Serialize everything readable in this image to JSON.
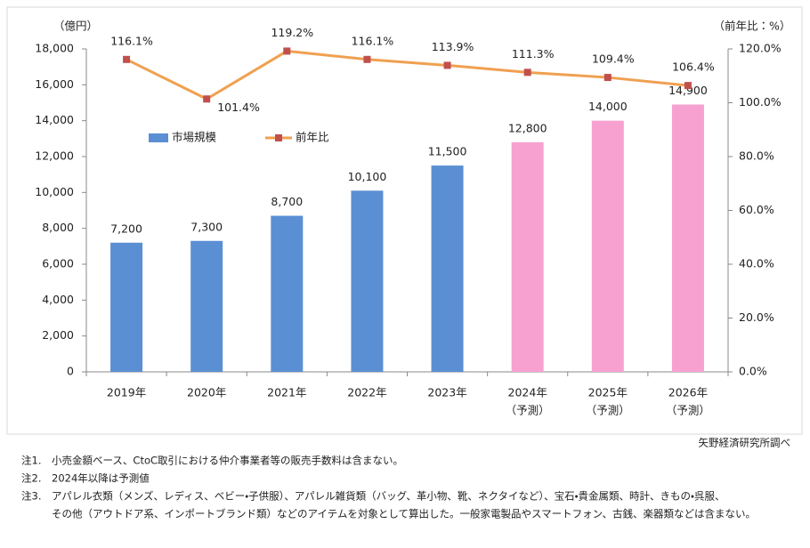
{
  "chart_data": {
    "type": "bar_line",
    "y_axis_label": "（億円）",
    "y2_axis_label": "（前年比：%）",
    "categories": [
      [
        "2019年"
      ],
      [
        "2020年"
      ],
      [
        "2021年"
      ],
      [
        "2022年"
      ],
      [
        "2023年"
      ],
      [
        "2024年",
        "（予測）"
      ],
      [
        "2025年",
        "（予測）"
      ],
      [
        "2026年",
        "（予測）"
      ]
    ],
    "series": [
      {
        "name": "市場規模",
        "type": "bar",
        "color": "#5a8fd3",
        "colors": [
          "#5a8fd3",
          "#5a8fd3",
          "#5a8fd3",
          "#5a8fd3",
          "#5a8fd3",
          "#f7a1d1",
          "#f7a1d1",
          "#f7a1d1"
        ],
        "values": [
          7200,
          7300,
          8700,
          10100,
          11500,
          12800,
          14000,
          14900
        ],
        "value_labels": [
          "7,200",
          "7,300",
          "8,700",
          "10,100",
          "11,500",
          "12,800",
          "14,000",
          "14,900"
        ]
      },
      {
        "name": "前年比",
        "type": "line",
        "axis": "y2",
        "color": "#f0a050",
        "marker_color": "#c0504d",
        "values": [
          116.1,
          101.4,
          119.2,
          116.1,
          113.9,
          111.3,
          109.4,
          106.4
        ],
        "value_labels": [
          "116.1%",
          "101.4%",
          "119.2%",
          "116.1%",
          "113.9%",
          "111.3%",
          "109.4%",
          "106.4%"
        ]
      }
    ],
    "ylim": [
      0,
      18000
    ],
    "yticks": [
      0,
      {
        "value": 2000,
        "label": "2,000"
      },
      {
        "value": 4000,
        "label": "4,000"
      },
      {
        "value": 6000,
        "label": "6,000"
      },
      {
        "value": 8000,
        "label": "8,000"
      },
      {
        "value": 10000,
        "label": "10,000"
      },
      {
        "value": 12000,
        "label": "12,000"
      },
      {
        "value": 14000,
        "label": "14,000"
      },
      {
        "value": 16000,
        "label": "16,000"
      },
      {
        "value": 18000,
        "label": "18,000"
      }
    ],
    "y2lim": [
      0,
      120
    ],
    "y2ticks": [
      {
        "value": 0,
        "label": "0.0%"
      },
      {
        "value": 20,
        "label": "20.0%"
      },
      {
        "value": 40,
        "label": "40.0%"
      },
      {
        "value": 60,
        "label": "60.0%"
      },
      {
        "value": 80,
        "label": "80.0%"
      },
      {
        "value": 100,
        "label": "100.0%"
      },
      {
        "value": 120,
        "label": "120.0%"
      }
    ],
    "grid": false,
    "source": "矢野経済研究所調べ",
    "notes": [
      {
        "label": "注1.",
        "lines": [
          "小売金額ベース、CtoC取引における仲介事業者等の販売手数料は含まない。"
        ]
      },
      {
        "label": "注2.",
        "lines": [
          "2024年以降は予測値"
        ]
      },
      {
        "label": "注3.",
        "lines": [
          "アパレル衣類（メンズ、レディス、ベビー・子供服）、アパレル雑貨類（バッグ、革小物、靴、ネクタイなど）、宝石・貴金属類、時計、きもの・呉服、",
          "その他（アウトドア系、インポートブランド類）などのアイテムを対象として算出した。一般家電製品やスマートフォン、古銭、楽器類などは含まない。"
        ]
      }
    ]
  }
}
